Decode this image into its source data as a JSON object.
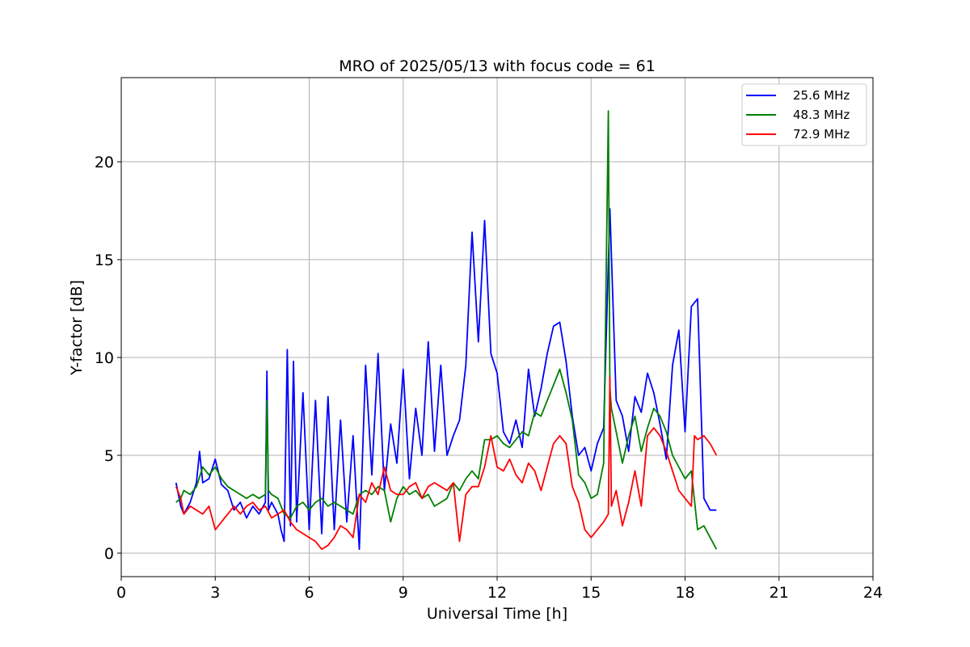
{
  "chart_data": {
    "type": "line",
    "title": "MRO of 2025/05/13 with focus code = 61",
    "xlabel": "Universal Time [h]",
    "ylabel": "Y-factor [dB]",
    "xlim": [
      0,
      24
    ],
    "ylim": [
      -1.2,
      24.3
    ],
    "xticks": [
      0,
      3,
      6,
      9,
      12,
      15,
      18,
      21,
      24
    ],
    "yticks": [
      0,
      5,
      10,
      15,
      20
    ],
    "grid": true,
    "legend_position": "top-right",
    "series": [
      {
        "name": "25.6 MHz",
        "color": "#0000ff",
        "x": [
          1.75,
          1.9,
          2.0,
          2.2,
          2.4,
          2.5,
          2.6,
          2.8,
          3.0,
          3.2,
          3.4,
          3.6,
          3.8,
          4.0,
          4.2,
          4.4,
          4.6,
          4.65,
          4.7,
          4.8,
          5.0,
          5.1,
          5.2,
          5.3,
          5.4,
          5.5,
          5.6,
          5.8,
          6.0,
          6.2,
          6.4,
          6.6,
          6.8,
          7.0,
          7.2,
          7.4,
          7.6,
          7.8,
          8.0,
          8.2,
          8.4,
          8.6,
          8.8,
          9.0,
          9.2,
          9.4,
          9.6,
          9.8,
          10.0,
          10.2,
          10.4,
          10.6,
          10.8,
          11.0,
          11.2,
          11.4,
          11.6,
          11.8,
          12.0,
          12.2,
          12.4,
          12.6,
          12.8,
          13.0,
          13.2,
          13.4,
          13.6,
          13.8,
          14.0,
          14.2,
          14.4,
          14.6,
          14.8,
          15.0,
          15.2,
          15.4,
          15.6,
          15.8,
          16.0,
          16.2,
          16.4,
          16.6,
          16.8,
          17.0,
          17.2,
          17.4,
          17.6,
          17.8,
          18.0,
          18.2,
          18.4,
          18.6,
          18.8,
          19.0
        ],
        "y": [
          3.6,
          2.4,
          2.0,
          2.6,
          3.6,
          5.2,
          3.6,
          3.8,
          4.8,
          3.5,
          3.2,
          2.2,
          2.6,
          1.8,
          2.4,
          2.0,
          2.6,
          9.3,
          2.2,
          2.6,
          2.0,
          1.2,
          0.6,
          10.4,
          1.4,
          9.8,
          1.6,
          8.2,
          1.2,
          7.8,
          1.0,
          8.0,
          1.2,
          6.8,
          1.6,
          6.0,
          0.2,
          9.6,
          4.0,
          10.2,
          3.2,
          6.6,
          4.6,
          9.4,
          3.8,
          7.4,
          5.0,
          10.8,
          5.2,
          9.6,
          5.0,
          6.0,
          6.8,
          9.6,
          16.4,
          10.8,
          17.0,
          10.2,
          9.2,
          6.2,
          5.6,
          6.8,
          5.4,
          9.4,
          7.0,
          8.4,
          10.2,
          11.6,
          11.8,
          9.8,
          7.0,
          5.0,
          5.4,
          4.2,
          5.6,
          6.4,
          17.6,
          7.8,
          7.0,
          5.2,
          8.0,
          7.2,
          9.2,
          8.2,
          6.6,
          4.8,
          9.6,
          11.4,
          6.2,
          12.6,
          13.0,
          2.8,
          2.2,
          2.2
        ]
      },
      {
        "name": "48.3 MHz",
        "color": "#008000",
        "x": [
          1.75,
          1.9,
          2.0,
          2.2,
          2.4,
          2.6,
          2.8,
          3.0,
          3.2,
          3.4,
          3.6,
          3.8,
          4.0,
          4.2,
          4.4,
          4.6,
          4.65,
          4.7,
          4.8,
          5.0,
          5.2,
          5.4,
          5.6,
          5.8,
          6.0,
          6.2,
          6.4,
          6.6,
          6.8,
          7.0,
          7.2,
          7.4,
          7.6,
          7.8,
          8.0,
          8.2,
          8.4,
          8.6,
          8.8,
          9.0,
          9.2,
          9.4,
          9.6,
          9.8,
          10.0,
          10.2,
          10.4,
          10.6,
          10.8,
          11.0,
          11.2,
          11.4,
          11.6,
          11.8,
          12.0,
          12.2,
          12.4,
          12.6,
          12.8,
          13.0,
          13.2,
          13.4,
          13.6,
          13.8,
          14.0,
          14.2,
          14.4,
          14.6,
          14.8,
          15.0,
          15.2,
          15.4,
          15.55,
          15.6,
          15.65,
          15.8,
          16.0,
          16.2,
          16.4,
          16.6,
          16.8,
          17.0,
          17.2,
          17.4,
          17.6,
          17.8,
          18.0,
          18.2,
          18.4,
          18.6,
          18.8,
          19.0
        ],
        "y": [
          2.6,
          2.8,
          3.2,
          3.0,
          3.4,
          4.4,
          4.0,
          4.4,
          3.8,
          3.4,
          3.2,
          3.0,
          2.8,
          3.0,
          2.8,
          3.0,
          7.8,
          3.2,
          3.0,
          2.8,
          2.0,
          1.8,
          2.4,
          2.6,
          2.2,
          2.6,
          2.8,
          2.4,
          2.6,
          2.4,
          2.2,
          2.0,
          3.0,
          3.2,
          3.0,
          3.4,
          3.2,
          1.6,
          2.8,
          3.4,
          3.0,
          3.2,
          2.8,
          3.0,
          2.4,
          2.6,
          2.8,
          3.6,
          3.2,
          3.8,
          4.2,
          3.8,
          5.8,
          5.8,
          6.0,
          5.6,
          5.4,
          5.8,
          6.2,
          6.0,
          7.2,
          7.0,
          7.8,
          8.6,
          9.4,
          8.2,
          6.8,
          4.0,
          3.6,
          2.8,
          3.0,
          4.6,
          22.6,
          8.4,
          7.4,
          6.2,
          4.6,
          6.0,
          7.0,
          5.2,
          6.4,
          7.4,
          7.0,
          6.2,
          5.0,
          4.4,
          3.8,
          4.2,
          1.2,
          1.4,
          0.8,
          0.2
        ]
      },
      {
        "name": "72.9 MHz",
        "color": "#ff0000",
        "x": [
          1.75,
          1.9,
          2.0,
          2.2,
          2.4,
          2.6,
          2.8,
          3.0,
          3.2,
          3.4,
          3.6,
          3.8,
          4.0,
          4.2,
          4.4,
          4.6,
          4.8,
          5.0,
          5.2,
          5.4,
          5.6,
          5.8,
          6.0,
          6.2,
          6.4,
          6.6,
          6.8,
          7.0,
          7.2,
          7.4,
          7.6,
          7.8,
          8.0,
          8.2,
          8.4,
          8.6,
          8.8,
          9.0,
          9.2,
          9.4,
          9.6,
          9.8,
          10.0,
          10.2,
          10.4,
          10.6,
          10.8,
          11.0,
          11.2,
          11.4,
          11.6,
          11.8,
          12.0,
          12.2,
          12.4,
          12.6,
          12.8,
          13.0,
          13.2,
          13.4,
          13.6,
          13.8,
          14.0,
          14.2,
          14.4,
          14.6,
          14.8,
          15.0,
          15.2,
          15.4,
          15.55,
          15.6,
          15.65,
          15.8,
          16.0,
          16.2,
          16.4,
          16.6,
          16.8,
          17.0,
          17.2,
          17.4,
          17.6,
          17.8,
          18.0,
          18.2,
          18.3,
          18.4,
          18.6,
          18.8,
          19.0
        ],
        "y": [
          3.4,
          2.8,
          2.0,
          2.4,
          2.2,
          2.0,
          2.4,
          1.2,
          1.6,
          2.0,
          2.4,
          2.0,
          2.4,
          2.6,
          2.2,
          2.4,
          1.8,
          2.0,
          2.2,
          1.6,
          1.2,
          1.0,
          0.8,
          0.6,
          0.2,
          0.4,
          0.8,
          1.4,
          1.2,
          0.8,
          3.0,
          2.6,
          3.6,
          3.0,
          4.4,
          3.2,
          3.0,
          3.0,
          3.4,
          3.6,
          2.8,
          3.4,
          3.6,
          3.4,
          3.2,
          3.6,
          0.6,
          3.0,
          3.4,
          3.4,
          4.4,
          6.0,
          4.4,
          4.2,
          4.8,
          4.0,
          3.6,
          4.6,
          4.2,
          3.2,
          4.4,
          5.6,
          6.0,
          5.6,
          3.4,
          2.6,
          1.2,
          0.8,
          1.2,
          1.6,
          2.0,
          9.0,
          2.4,
          3.2,
          1.4,
          2.6,
          4.2,
          2.4,
          6.0,
          6.4,
          6.0,
          5.2,
          4.2,
          3.2,
          2.8,
          2.4,
          6.0,
          5.8,
          6.0,
          5.6,
          5.0
        ]
      }
    ]
  }
}
